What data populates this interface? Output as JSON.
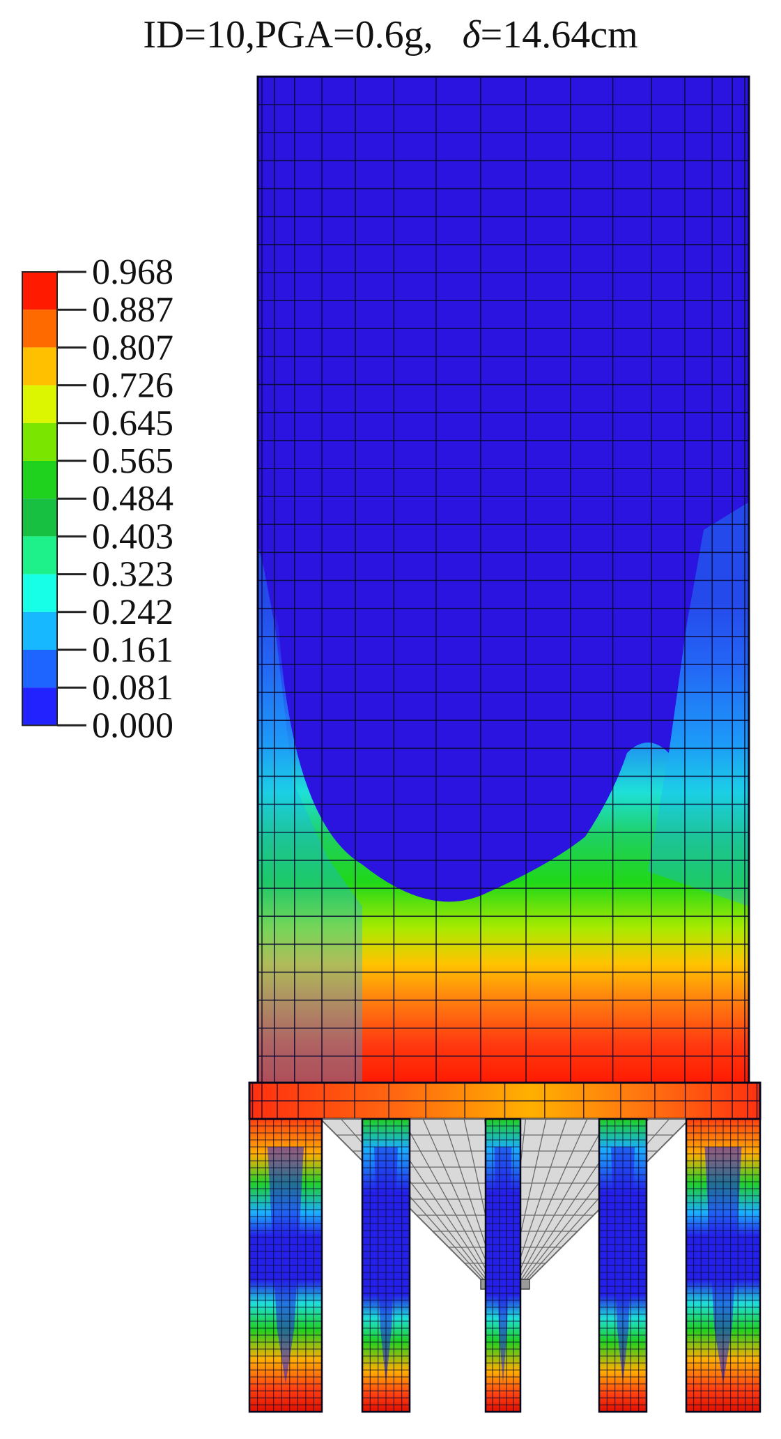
{
  "title": {
    "prefix": "ID=10,PGA=0.6g,   ",
    "delta_symbol": "δ",
    "suffix": "=14.64cm"
  },
  "legend": {
    "values": [
      "0.968",
      "0.887",
      "0.807",
      "0.726",
      "0.645",
      "0.565",
      "0.484",
      "0.403",
      "0.323",
      "0.242",
      "0.161",
      "0.081",
      "0.000"
    ],
    "colors": [
      "#ff1a00",
      "#ff6a00",
      "#ffc000",
      "#dcf500",
      "#7ae600",
      "#1ed21e",
      "#17c040",
      "#1ef08a",
      "#17ffe6",
      "#17b8ff",
      "#1e64ff",
      "#2222ff"
    ]
  },
  "palette": {
    "background": "#ffffff",
    "mesh_line": "#0a0a30",
    "cone_fill": "#d9d9d9",
    "cone_line": "#6a6a6a"
  }
}
